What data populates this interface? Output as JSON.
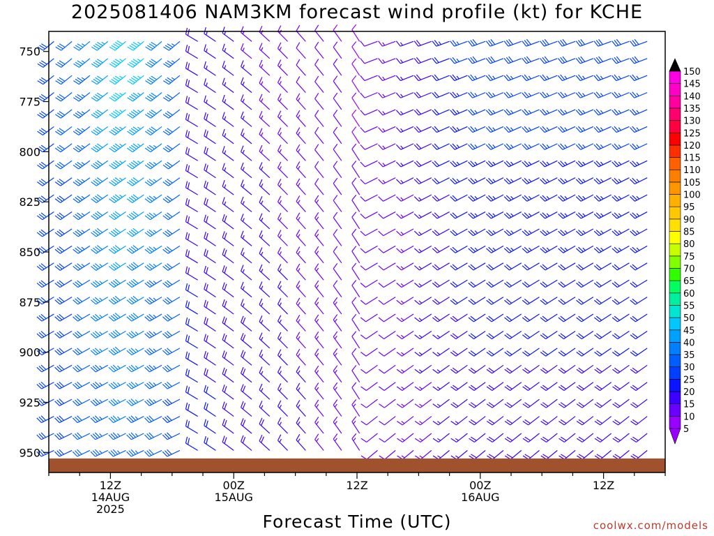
{
  "chart_data": {
    "type": "wind-barb profile",
    "title": "2025081406 NAM3KM forecast wind profile (kt) for KCHE",
    "xlabel": "Forecast Time (UTC)",
    "credit": "coolwx.com/models",
    "x_ticks": [
      {
        "hour": 12,
        "lines": [
          "12Z",
          "14AUG",
          "2025"
        ]
      },
      {
        "hour": 24,
        "lines": [
          "00Z",
          "15AUG"
        ]
      },
      {
        "hour": 36,
        "lines": [
          "12Z"
        ]
      },
      {
        "hour": 48,
        "lines": [
          "00Z",
          "16AUG"
        ]
      },
      {
        "hour": 60,
        "lines": [
          "12Z"
        ]
      }
    ],
    "x_range_hours_since_14AUG_00Z": [
      6,
      66
    ],
    "y_ticks": [
      750,
      775,
      800,
      825,
      850,
      875,
      900,
      925,
      950
    ],
    "y_range_hPa": [
      740,
      960
    ],
    "surface_pressure_hPa": 953,
    "colorbar": {
      "levels": [
        5,
        10,
        15,
        20,
        25,
        30,
        35,
        40,
        45,
        50,
        55,
        60,
        65,
        70,
        75,
        80,
        85,
        90,
        95,
        100,
        105,
        110,
        115,
        120,
        125,
        130,
        135,
        140,
        145,
        150
      ],
      "colors": [
        "#9a00ff",
        "#6a00ff",
        "#3b00ff",
        "#0a14ff",
        "#0040ff",
        "#0060ff",
        "#0080ff",
        "#00a0ff",
        "#00c8ff",
        "#00e6d0",
        "#00f0a0",
        "#00ff60",
        "#30ff00",
        "#80ff00",
        "#c8ff00",
        "#ffff00",
        "#ffe000",
        "#ffc800",
        "#ffb000",
        "#ff9600",
        "#ff8000",
        "#ff6000",
        "#ff3000",
        "#ff0000",
        "#ff0040",
        "#ff0070",
        "#ff00a0",
        "#ff00c8",
        "#ff00e6",
        "#ff00ff"
      ]
    },
    "colors": {
      "ground": "#a0522d",
      "axis": "#000000"
    }
  }
}
